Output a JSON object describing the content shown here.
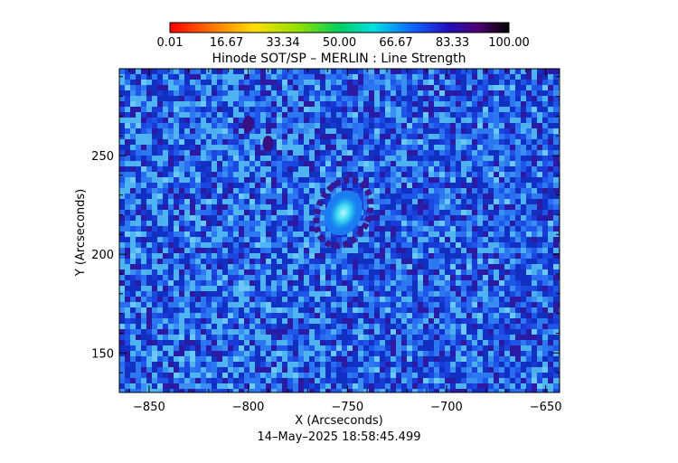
{
  "chart_data": {
    "type": "heatmap",
    "title": "Hinode SOT/SP – MERLIN : Line Strength",
    "xlabel": "X (Arcseconds)",
    "ylabel": "Y (Arcseconds)",
    "xlim": [
      -865,
      -643
    ],
    "ylim": [
      130,
      294
    ],
    "x_ticks": [
      -850,
      -800,
      -750,
      -700,
      -650
    ],
    "x_tick_labels": [
      "−850",
      "−800",
      "−750",
      "−700",
      "−650"
    ],
    "y_ticks": [
      150,
      200,
      250
    ],
    "y_tick_labels": [
      "150",
      "200",
      "250"
    ],
    "colorbar": {
      "min": 0.01,
      "max": 100.0,
      "tick_labels": [
        "0.01",
        "16.67",
        "33.34",
        "50.00",
        "66.67",
        "83.33",
        "100.00"
      ],
      "colormap": "rainbow: red-orange-yellow-green-cyan-blue-purple-black"
    },
    "features": [
      {
        "name": "sunspot umbra",
        "x": -752,
        "y": 221,
        "value": 60
      },
      {
        "name": "dark penumbra ring",
        "x": -752,
        "y": 221,
        "value": 90
      },
      {
        "name": "dark knot",
        "x": -790,
        "y": 256,
        "value": 90
      },
      {
        "name": "dark knot",
        "x": -800,
        "y": 266,
        "value": 90
      }
    ]
  },
  "timestamp": "14–May–2025 18:58:45.499"
}
